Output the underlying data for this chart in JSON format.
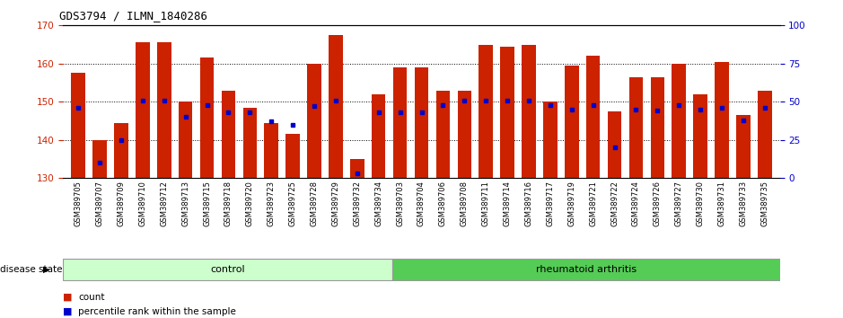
{
  "title": "GDS3794 / ILMN_1840286",
  "samples": [
    "GSM389705",
    "GSM389707",
    "GSM389709",
    "GSM389710",
    "GSM389712",
    "GSM389713",
    "GSM389715",
    "GSM389718",
    "GSM389720",
    "GSM389723",
    "GSM389725",
    "GSM389728",
    "GSM389729",
    "GSM389732",
    "GSM389734",
    "GSM389703",
    "GSM389704",
    "GSM389706",
    "GSM389708",
    "GSM389711",
    "GSM389714",
    "GSM389716",
    "GSM389717",
    "GSM389719",
    "GSM389721",
    "GSM389722",
    "GSM389724",
    "GSM389726",
    "GSM389727",
    "GSM389730",
    "GSM389731",
    "GSM389733",
    "GSM389735"
  ],
  "counts": [
    157.5,
    140.0,
    144.5,
    165.5,
    165.5,
    150.0,
    161.5,
    153.0,
    148.5,
    144.5,
    141.5,
    160.0,
    167.5,
    135.0,
    152.0,
    159.0,
    159.0,
    153.0,
    153.0,
    165.0,
    164.5,
    165.0,
    150.0,
    159.5,
    162.0,
    147.5,
    156.5,
    156.5,
    160.0,
    152.0,
    160.5,
    146.5,
    153.0
  ],
  "percentile_ranks": [
    46,
    10,
    25,
    51,
    51,
    40,
    48,
    43,
    43,
    37,
    35,
    47,
    51,
    3,
    43,
    43,
    43,
    48,
    51,
    51,
    51,
    51,
    48,
    45,
    48,
    20,
    45,
    44,
    48,
    45,
    46,
    38,
    46
  ],
  "n_control": 15,
  "ymin": 130,
  "ymax": 170,
  "yticks": [
    130,
    140,
    150,
    160,
    170
  ],
  "bar_color": "#cc2200",
  "dot_color": "#0000cc",
  "control_color": "#ccffcc",
  "ra_color": "#55cc55",
  "control_label": "control",
  "ra_label": "rheumatoid arthritis",
  "legend_count": "count",
  "legend_pct": "percentile rank within the sample",
  "disease_state_label": "disease state"
}
